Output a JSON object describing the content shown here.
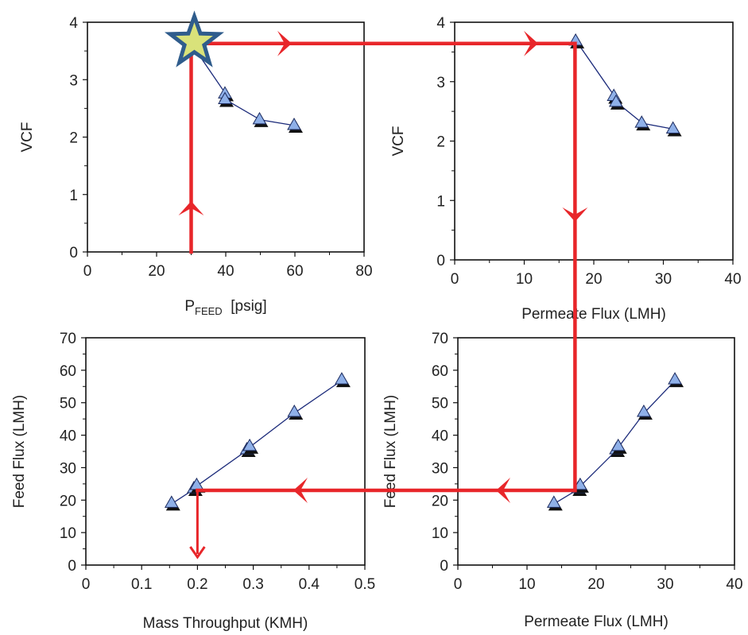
{
  "chart_data": [
    {
      "id": "tl",
      "type": "scatter",
      "xlabel": "P",
      "xlabel_sub": "FEED",
      "xlabel_suffix": "[psig]",
      "ylabel": "VCF",
      "xlim": [
        0,
        80
      ],
      "ylim": [
        0,
        4
      ],
      "xticks": [
        0,
        20,
        40,
        60,
        80
      ],
      "yticks": [
        0,
        1,
        2,
        3,
        4
      ],
      "series": [
        {
          "x": [
            30,
            40,
            40,
            50,
            60
          ],
          "y": [
            3.63,
            2.75,
            2.65,
            2.3,
            2.2
          ],
          "marker": "triangle",
          "connect": true
        }
      ]
    },
    {
      "id": "tr",
      "type": "scatter",
      "xlabel": "Permeate Flux (LMH)",
      "ylabel": "VCF",
      "xlim": [
        0,
        40
      ],
      "ylim": [
        0,
        4
      ],
      "xticks": [
        0,
        10,
        20,
        30,
        40
      ],
      "yticks": [
        0,
        1,
        2,
        3,
        4
      ],
      "series": [
        {
          "x": [
            17.5,
            23,
            23.3,
            27,
            31.5
          ],
          "y": [
            3.68,
            2.75,
            2.65,
            2.3,
            2.2
          ],
          "marker": "triangle",
          "connect": true
        }
      ]
    },
    {
      "id": "bl",
      "type": "scatter",
      "xlabel": "Mass Throughput (KMH)",
      "ylabel": "Feed Flux (LMH)",
      "xlim": [
        0,
        0.5
      ],
      "ylim": [
        0,
        70
      ],
      "xticks": [
        0,
        0.1,
        0.2,
        0.3,
        0.4,
        0.5
      ],
      "yticks": [
        0,
        10,
        20,
        30,
        40,
        50,
        60,
        70
      ],
      "series": [
        {
          "x": [
            0.155,
            0.195,
            0.2,
            0.29,
            0.295,
            0.375,
            0.46
          ],
          "y": [
            19,
            23.5,
            24.5,
            35.5,
            36.5,
            47,
            57
          ],
          "marker": "triangle",
          "connect": true
        }
      ]
    },
    {
      "id": "br",
      "type": "scatter",
      "xlabel": "Permeate Flux (LMH)",
      "ylabel": "Feed Flux (LMH)",
      "xlim": [
        0,
        40
      ],
      "ylim": [
        0,
        70
      ],
      "xticks": [
        0,
        10,
        20,
        30,
        40
      ],
      "yticks": [
        0,
        10,
        20,
        30,
        40,
        50,
        60,
        70
      ],
      "series": [
        {
          "x": [
            14,
            17.5,
            17.8,
            23,
            23.3,
            27,
            31.5
          ],
          "y": [
            19,
            23.5,
            24.5,
            35.5,
            36.5,
            47,
            57
          ],
          "marker": "triangle",
          "connect": true
        }
      ]
    }
  ],
  "colors": {
    "arrow": "#e8262a",
    "marker_fill": "#8fb0e8",
    "marker_edge": "#1b2a5e",
    "line": "#1b2a7a",
    "star_fill": "#d9e27a",
    "star_edge": "#2f5c8c"
  }
}
